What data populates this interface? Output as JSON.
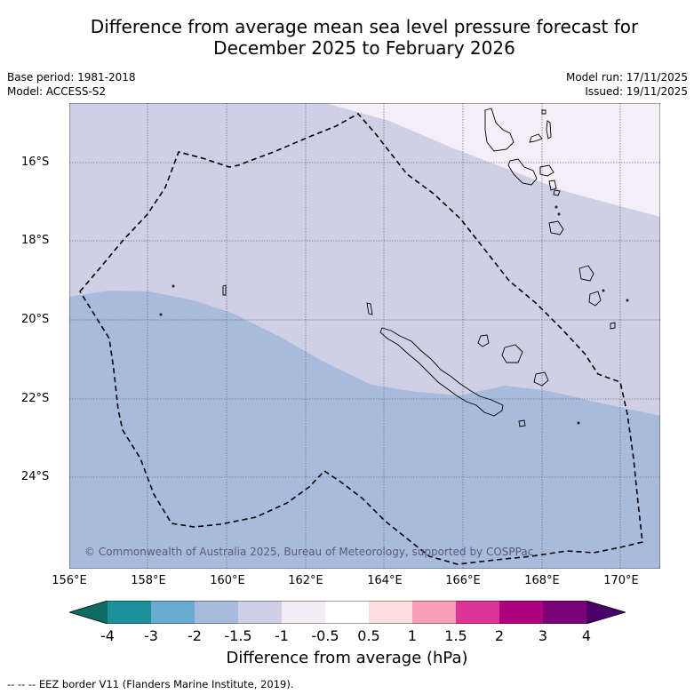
{
  "title": {
    "line1": "Difference from average mean sea level pressure forecast for",
    "line2": "December 2025 to February 2026"
  },
  "meta": {
    "base_period": "Base period: 1981-2018",
    "model": "Model: ACCESS-S2",
    "model_run": "Model run: 17/11/2025",
    "issued": "Issued: 19/11/2025"
  },
  "map": {
    "copyright": "© Commonwealth of Australia 2025, Bureau of Meteorology, supported by COSPPac",
    "lon_labels": [
      "156°E",
      "158°E",
      "160°E",
      "162°E",
      "164°E",
      "166°E",
      "168°E",
      "170°E"
    ],
    "lat_labels": [
      "16°S",
      "18°S",
      "20°S",
      "22°S",
      "24°S"
    ],
    "extent": {
      "lon_min": 156,
      "lon_max": 171,
      "lat_min": -26.2,
      "lat_max": -14.5
    }
  },
  "colorbar": {
    "title": "Difference from average (hPa)",
    "tick_labels": [
      "-4",
      "-3",
      "-2",
      "-1.5",
      "-1",
      "-0.5",
      "0.5",
      "1",
      "1.5",
      "2",
      "3",
      "4"
    ],
    "colors": [
      "#0f6b63",
      "#1c9098",
      "#6aabd2",
      "#a8bbdc",
      "#cfcfe6",
      "#f2ecf5",
      "#ffffff",
      "#fde0dd",
      "#f89eb8",
      "#dd3497",
      "#ae017e",
      "#7a0177",
      "#49006a"
    ]
  },
  "footer": {
    "legend": "--  --  -- EEZ border V11 (Flanders Marine Institute, 2019)."
  }
}
